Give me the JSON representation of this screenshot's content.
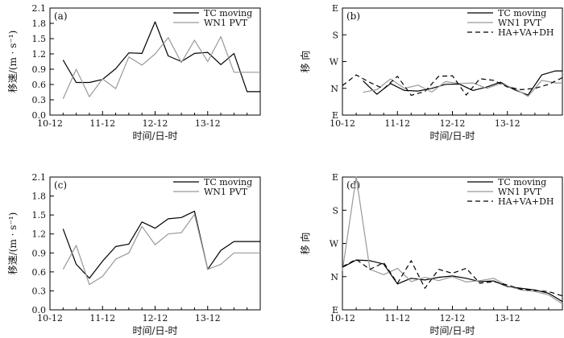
{
  "chart_data": [
    {
      "type": "line",
      "panel_label": "(a)",
      "xlabel": "时间/日-时",
      "ylabel": "移速/(m · s⁻¹)",
      "x_ticks": [
        "10-12",
        "11-12",
        "12-12",
        "13-12"
      ],
      "y_ticks": [
        "0.0",
        "0.3",
        "0.6",
        "0.9",
        "1.2",
        "1.5",
        "1.8",
        "2.1"
      ],
      "ylim": [
        0,
        2.1
      ],
      "xlim": [
        0,
        16
      ],
      "series": [
        {
          "name": "TC moving",
          "color": "#000000",
          "dash": "none",
          "x": [
            1,
            2,
            3,
            4,
            5,
            6,
            7,
            8,
            9,
            10,
            11,
            12,
            13,
            14,
            15,
            16
          ],
          "values": [
            1.08,
            0.64,
            0.64,
            0.7,
            0.91,
            1.22,
            1.21,
            1.83,
            1.16,
            1.05,
            1.21,
            1.23,
            0.99,
            1.21,
            0.46,
            0.46
          ]
        },
        {
          "name": "WN1 PVT",
          "color": "#999999",
          "dash": "none",
          "x": [
            1,
            2,
            3,
            4,
            5,
            6,
            7,
            8,
            9,
            10,
            11,
            12,
            13,
            14,
            15,
            16
          ],
          "values": [
            0.32,
            0.9,
            0.36,
            0.71,
            0.52,
            1.14,
            0.98,
            1.2,
            1.52,
            1.03,
            1.47,
            1.05,
            1.54,
            0.84,
            0.84,
            0.84
          ]
        }
      ]
    },
    {
      "type": "line",
      "panel_label": "(b)",
      "xlabel": "时间/日-时",
      "ylabel": "移 向",
      "x_ticks": [
        "10-12",
        "11-12",
        "12-12",
        "13-12"
      ],
      "y_ticks": [
        "E",
        "N",
        "W",
        "S",
        "E"
      ],
      "ylim": [
        0,
        4
      ],
      "xlim": [
        0,
        16
      ],
      "series": [
        {
          "name": "TC moving",
          "color": "#000000",
          "dash": "none",
          "x": [
            1.5,
            2.5,
            3.5,
            4.5,
            5.5,
            6.5,
            7.5,
            8.5,
            9.5,
            10.5,
            11.5,
            12.5,
            13.5,
            14.5,
            15.5,
            16
          ],
          "values": [
            1.28,
            0.78,
            1.18,
            0.92,
            0.9,
            1.0,
            1.15,
            1.16,
            0.92,
            1.05,
            1.23,
            0.95,
            0.75,
            1.5,
            1.65,
            1.65
          ]
        },
        {
          "name": "WN1 PVT",
          "color": "#999999",
          "dash": "none",
          "x": [
            1.5,
            2.5,
            3.5,
            4.5,
            5.5,
            6.5,
            7.5,
            8.5,
            9.5,
            10.5,
            11.5,
            12.5,
            13.5,
            14.5,
            15.5,
            16
          ],
          "values": [
            0.85,
            0.95,
            1.35,
            1.0,
            1.12,
            0.86,
            1.25,
            1.18,
            1.2,
            1.0,
            1.18,
            1.0,
            0.7,
            1.3,
            1.2,
            1.2
          ]
        },
        {
          "name": "HA+VA+DH",
          "color": "#000000",
          "dash": "6,4",
          "x": [
            0,
            1,
            2,
            3,
            4,
            5,
            6,
            7,
            8,
            9,
            10,
            11,
            12,
            13,
            14,
            15,
            16
          ],
          "values": [
            1.1,
            1.5,
            1.22,
            0.98,
            1.45,
            0.74,
            0.88,
            1.45,
            1.47,
            0.75,
            1.36,
            1.3,
            1.05,
            0.95,
            1.0,
            1.15,
            1.4
          ]
        }
      ]
    },
    {
      "type": "line",
      "panel_label": "(c)",
      "xlabel": "时间/日-时",
      "ylabel": "移速/(m · s⁻¹)",
      "x_ticks": [
        "10-12",
        "11-12",
        "12-12",
        "13-12"
      ],
      "y_ticks": [
        "0.0",
        "0.3",
        "0.6",
        "0.9",
        "1.2",
        "1.5",
        "1.8",
        "2.1"
      ],
      "ylim": [
        0,
        2.1
      ],
      "xlim": [
        0,
        16
      ],
      "series": [
        {
          "name": "TC moving",
          "color": "#000000",
          "dash": "none",
          "x": [
            1,
            2,
            3,
            4,
            5,
            6,
            7,
            8,
            9,
            10,
            11,
            12,
            13,
            14,
            15,
            16
          ],
          "values": [
            1.28,
            0.72,
            0.5,
            0.77,
            1.0,
            1.04,
            1.39,
            1.29,
            1.44,
            1.46,
            1.56,
            0.64,
            0.94,
            1.08,
            1.08,
            1.08
          ]
        },
        {
          "name": "WN1 PVT",
          "color": "#999999",
          "dash": "none",
          "x": [
            1,
            2,
            3,
            4,
            5,
            6,
            7,
            8,
            9,
            10,
            11,
            12,
            13,
            14,
            15,
            16
          ],
          "values": [
            0.64,
            1.02,
            0.4,
            0.53,
            0.8,
            0.9,
            1.32,
            1.03,
            1.2,
            1.22,
            1.51,
            0.64,
            0.72,
            0.9,
            0.9,
            0.9
          ]
        }
      ]
    },
    {
      "type": "line",
      "panel_label": "(d)",
      "xlabel": "时间/日-时",
      "ylabel": "移 向",
      "x_ticks": [
        "10-12",
        "11-12",
        "12-12",
        "13-12"
      ],
      "y_ticks": [
        "E",
        "N",
        "W",
        "S",
        "E"
      ],
      "ylim": [
        0,
        4
      ],
      "xlim": [
        0,
        16
      ],
      "series": [
        {
          "name": "TC moving",
          "color": "#000000",
          "dash": "none",
          "x": [
            0,
            1,
            2,
            3,
            4,
            5,
            6,
            7,
            8,
            9,
            10,
            11,
            12,
            13,
            14,
            15,
            16
          ],
          "values": [
            1.28,
            1.5,
            1.48,
            1.38,
            0.78,
            0.95,
            0.9,
            0.98,
            1.02,
            0.95,
            0.85,
            0.87,
            0.7,
            0.65,
            0.6,
            0.5,
            0.25
          ]
        },
        {
          "name": "WN1 PVT",
          "color": "#999999",
          "dash": "none",
          "x": [
            0,
            1,
            2,
            3,
            4,
            5,
            6,
            7,
            8,
            9,
            10,
            11,
            12,
            13,
            14,
            15,
            16
          ],
          "values": [
            1.18,
            4.0,
            1.22,
            1.06,
            1.25,
            0.85,
            0.98,
            0.88,
            1.0,
            0.84,
            0.88,
            0.95,
            0.72,
            0.6,
            0.55,
            0.45,
            0.18
          ]
        },
        {
          "name": "HA+VA+DH",
          "color": "#000000",
          "dash": "6,4",
          "x": [
            0,
            1,
            2,
            3,
            4,
            5,
            6,
            7,
            8,
            9,
            10,
            11,
            12,
            13,
            14,
            15,
            16
          ],
          "values": [
            1.3,
            1.52,
            1.22,
            1.42,
            0.8,
            1.48,
            0.65,
            1.22,
            1.1,
            1.25,
            0.8,
            0.85,
            0.75,
            0.62,
            0.58,
            0.55,
            0.42
          ]
        }
      ]
    }
  ]
}
